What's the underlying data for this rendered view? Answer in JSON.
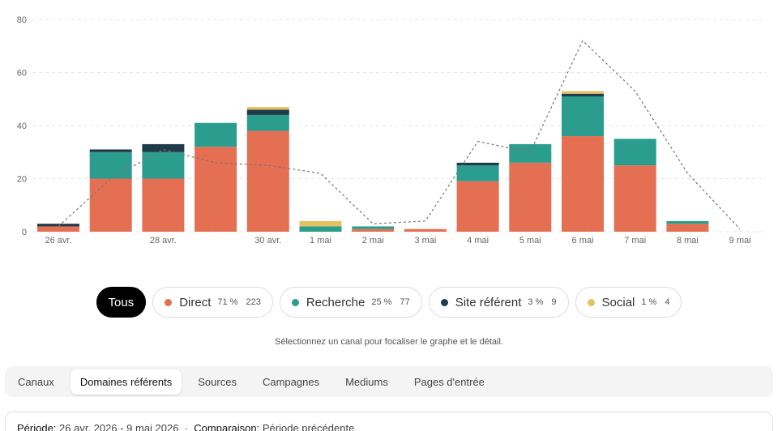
{
  "chart_data": {
    "type": "bar",
    "stacked": true,
    "categories": [
      "26 avr.",
      "27 avr.",
      "28 avr.",
      "29 avr.",
      "30 avr.",
      "1 mai",
      "2 mai",
      "3 mai",
      "4 mai",
      "5 mai",
      "6 mai",
      "7 mai",
      "8 mai",
      "9 mai"
    ],
    "tick_labels": [
      "26 avr.",
      "",
      "28 avr.",
      "",
      "30 avr.",
      "1 mai",
      "2 mai",
      "3 mai",
      "4 mai",
      "5 mai",
      "6 mai",
      "7 mai",
      "8 mai",
      "9 mai"
    ],
    "series": [
      {
        "name": "Direct",
        "color": "#e56f52",
        "values": [
          2,
          20,
          20,
          32,
          38,
          0,
          1,
          1,
          19,
          26,
          36,
          25,
          3,
          0
        ]
      },
      {
        "name": "Recherche",
        "color": "#2a9d8f",
        "values": [
          0,
          10,
          10,
          9,
          6,
          2,
          1,
          0,
          6,
          7,
          15,
          10,
          1,
          0
        ]
      },
      {
        "name": "Site référent",
        "color": "#1f3a4a",
        "values": [
          1,
          1,
          3,
          0,
          2,
          0,
          0,
          0,
          1,
          0,
          1,
          0,
          0,
          0
        ]
      },
      {
        "name": "Social",
        "color": "#e5c162",
        "values": [
          0,
          0,
          0,
          0,
          1,
          2,
          0,
          0,
          0,
          0,
          1,
          0,
          0,
          0
        ]
      }
    ],
    "comparison": {
      "values": [
        2,
        20,
        31,
        26,
        25,
        22,
        3,
        4,
        34,
        30,
        72,
        53,
        22,
        1
      ]
    },
    "ylim": [
      0,
      80
    ],
    "yticks": [
      0,
      20,
      40,
      60,
      80
    ],
    "grid": true
  },
  "legend": {
    "all_label": "Tous",
    "items": [
      {
        "label": "Direct",
        "pct": "71 %",
        "count": "223",
        "color": "#e56f52"
      },
      {
        "label": "Recherche",
        "pct": "25 %",
        "count": "77",
        "color": "#2a9d8f"
      },
      {
        "label": "Site référent",
        "pct": "3 %",
        "count": "9",
        "color": "#1f3a4a"
      },
      {
        "label": "Social",
        "pct": "1 %",
        "count": "4",
        "color": "#e5c162"
      }
    ]
  },
  "hint": "Sélectionnez un canal pour focaliser le graphe et le détail.",
  "tabs": [
    "Canaux",
    "Domaines référents",
    "Sources",
    "Campagnes",
    "Mediums",
    "Pages d'entrée"
  ],
  "period": {
    "label": "Période:",
    "value": "26 avr. 2026 - 9 mai 2026",
    "comparison_label": "Comparaison:",
    "comparison_value": "Période précédente"
  }
}
